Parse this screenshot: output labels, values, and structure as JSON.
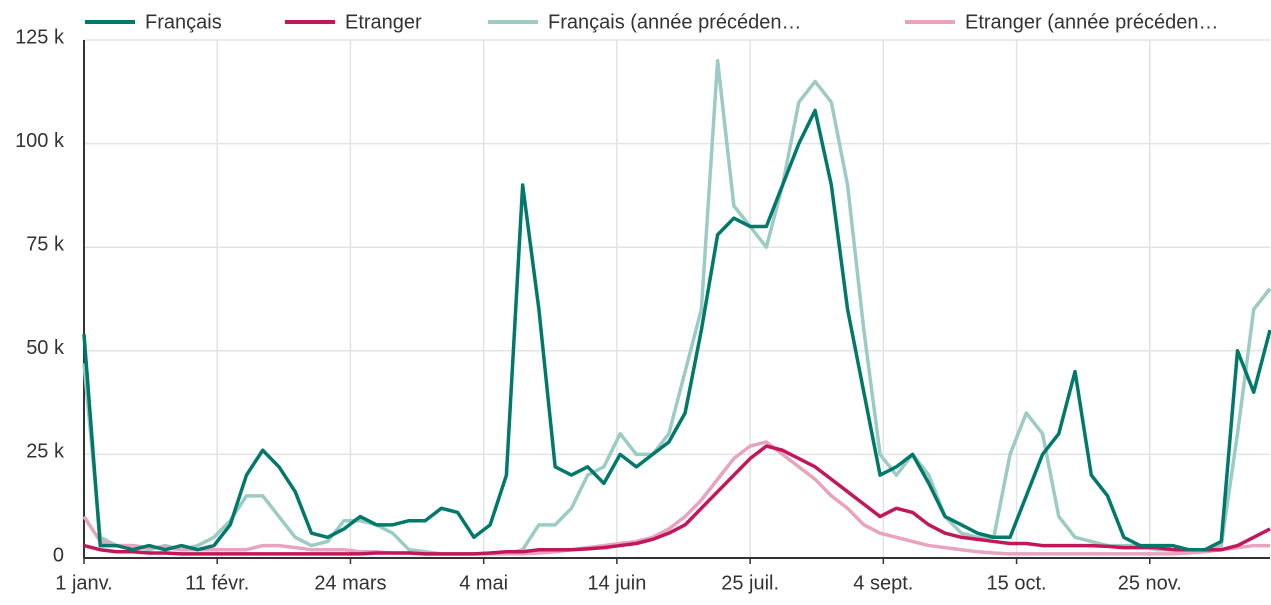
{
  "chart_data": {
    "type": "line",
    "x": [
      0,
      5,
      10,
      15,
      20,
      25,
      30,
      35,
      40,
      45,
      50,
      55,
      60,
      65,
      70,
      75,
      80,
      85,
      90,
      95,
      100,
      105,
      110,
      115,
      120,
      125,
      130,
      135,
      140,
      145,
      150,
      155,
      160,
      165,
      170,
      175,
      180,
      185,
      190,
      195,
      200,
      205,
      210,
      215,
      220,
      225,
      230,
      235,
      240,
      245,
      250,
      255,
      260,
      265,
      270,
      275,
      280,
      285,
      290,
      295,
      300,
      305,
      310,
      315,
      320,
      325,
      330,
      335,
      340,
      345,
      350,
      355,
      360,
      365
    ],
    "series": [
      {
        "name": "Français",
        "color": "#00796b",
        "values": [
          54000,
          3000,
          3000,
          2000,
          3000,
          2000,
          3000,
          2000,
          3000,
          8000,
          20000,
          26000,
          22000,
          16000,
          6000,
          5000,
          7000,
          10000,
          8000,
          8000,
          9000,
          9000,
          12000,
          11000,
          5000,
          8000,
          20000,
          90000,
          60000,
          22000,
          20000,
          22000,
          18000,
          25000,
          22000,
          25000,
          28000,
          35000,
          55000,
          78000,
          82000,
          80000,
          80000,
          90000,
          100000,
          108000,
          90000,
          60000,
          40000,
          20000,
          22000,
          25000,
          18000,
          10000,
          8000,
          6000,
          5000,
          5000,
          15000,
          25000,
          30000,
          45000,
          20000,
          15000,
          5000,
          3000,
          3000,
          3000,
          2000,
          2000,
          4000,
          50000,
          40000,
          55000
        ]
      },
      {
        "name": "Etranger",
        "color": "#c2185b",
        "values": [
          3000,
          2000,
          1500,
          1500,
          1200,
          1200,
          1000,
          1000,
          1000,
          1000,
          1000,
          1000,
          1000,
          1000,
          1000,
          1000,
          1000,
          1000,
          1200,
          1200,
          1200,
          1000,
          1000,
          1000,
          1000,
          1200,
          1500,
          1500,
          2000,
          2000,
          2000,
          2200,
          2500,
          3000,
          3500,
          4500,
          6000,
          8000,
          12000,
          16000,
          20000,
          24000,
          27000,
          26000,
          24000,
          22000,
          19000,
          16000,
          13000,
          10000,
          12000,
          11000,
          8000,
          6000,
          5000,
          4500,
          4000,
          3500,
          3500,
          3000,
          3000,
          3000,
          3000,
          2800,
          2500,
          2500,
          2500,
          2000,
          2000,
          2000,
          2000,
          3000,
          5000,
          7000
        ]
      },
      {
        "name": "Français (année précéden…",
        "color": "#9ccbc4",
        "values": [
          47000,
          5000,
          3000,
          3000,
          2000,
          3000,
          2000,
          3000,
          5000,
          9000,
          15000,
          15000,
          10000,
          5000,
          3000,
          4000,
          9000,
          9000,
          8000,
          6000,
          2000,
          1500,
          1000,
          1000,
          1000,
          1000,
          1000,
          2000,
          8000,
          8000,
          12000,
          20000,
          22000,
          30000,
          25000,
          25000,
          30000,
          45000,
          60000,
          120000,
          85000,
          80000,
          75000,
          90000,
          110000,
          115000,
          110000,
          90000,
          55000,
          25000,
          20000,
          25000,
          20000,
          10000,
          6000,
          5000,
          5000,
          25000,
          35000,
          30000,
          10000,
          5000,
          4000,
          3000,
          3000,
          3000,
          2000,
          2000,
          1500,
          1500,
          3000,
          30000,
          60000,
          65000
        ]
      },
      {
        "name": "Etranger (année précéden…",
        "color": "#e8a3bf",
        "values": [
          10000,
          4000,
          3000,
          3000,
          2500,
          2500,
          2000,
          2000,
          2000,
          2000,
          2000,
          3000,
          3000,
          2500,
          2000,
          2000,
          2000,
          1500,
          1500,
          1200,
          1200,
          1000,
          1000,
          1000,
          1000,
          1000,
          1000,
          1000,
          1200,
          1500,
          2000,
          2500,
          3000,
          3500,
          4000,
          5000,
          7000,
          10000,
          14000,
          19000,
          24000,
          27000,
          28000,
          25000,
          22000,
          19000,
          15000,
          12000,
          8000,
          6000,
          5000,
          4000,
          3000,
          2500,
          2000,
          1500,
          1200,
          1000,
          1000,
          1000,
          1000,
          1000,
          1000,
          1000,
          1000,
          1000,
          1000,
          1000,
          1200,
          1500,
          2000,
          2500,
          3000,
          3000
        ]
      }
    ],
    "xlim": [
      0,
      365
    ],
    "xticks": [
      {
        "value": 0,
        "label": "1 janv."
      },
      {
        "value": 41,
        "label": "11 févr."
      },
      {
        "value": 82,
        "label": "24 mars"
      },
      {
        "value": 123,
        "label": "4 mai"
      },
      {
        "value": 164,
        "label": "14 juin"
      },
      {
        "value": 205,
        "label": "25 juil."
      },
      {
        "value": 246,
        "label": "4 sept."
      },
      {
        "value": 287,
        "label": "15 oct."
      },
      {
        "value": 328,
        "label": "25 nov."
      }
    ],
    "ylim": [
      0,
      125000
    ],
    "yticks": [
      0,
      {
        "value": 25000,
        "label": "25 k"
      },
      {
        "value": 50000,
        "label": "50 k"
      },
      {
        "value": 75000,
        "label": "75 k"
      },
      {
        "value": 100000,
        "label": "100 k"
      },
      {
        "value": 125000,
        "label": "125 k"
      }
    ],
    "grid": true,
    "legend": "top"
  }
}
